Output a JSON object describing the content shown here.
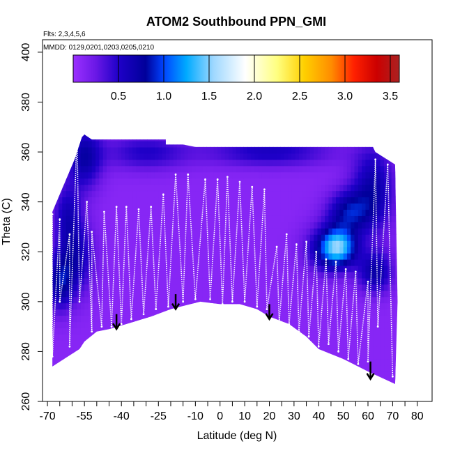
{
  "chart_data": {
    "type": "heatmap",
    "title": "ATOM2 Southbound PPN_GMI",
    "flights_label": "Flts: 2,3,4,5,6",
    "dates_label": "MMDD: 0129,0201,0203,0205,0210",
    "xlabel": "Latitude (deg N)",
    "ylabel": "Theta (C)",
    "xlim": [
      -72,
      86
    ],
    "ylim": [
      260,
      405
    ],
    "x_ticks": [
      -70,
      -65,
      -60,
      -55,
      -50,
      -45,
      -40,
      -35,
      -30,
      -25,
      -20,
      -15,
      -10,
      -5,
      0,
      5,
      10,
      15,
      20,
      25,
      30,
      35,
      40,
      45,
      50,
      55,
      60,
      65,
      70,
      75,
      80
    ],
    "x_tick_labels": [
      "-70",
      "",
      "",
      "-55",
      "",
      "",
      "-40",
      "",
      "",
      "-25",
      "",
      "",
      "-10",
      "",
      "0",
      "",
      "10",
      "",
      "20",
      "",
      "30",
      "",
      "40",
      "",
      "50",
      "",
      "60",
      "",
      "70",
      "",
      "80"
    ],
    "y_ticks": [
      260,
      280,
      300,
      320,
      340,
      360,
      380,
      400
    ],
    "y_tick_labels": [
      "260",
      "280",
      "300",
      "320",
      "340",
      "360",
      "380",
      "400"
    ],
    "colorbar": {
      "min": 0,
      "max": 3.6,
      "ticks": [
        0.5,
        1.0,
        1.5,
        2.0,
        2.5,
        3.0,
        3.5
      ],
      "tick_labels": [
        "0.5",
        "1.0",
        "1.5",
        "2.0",
        "2.5",
        "3.0",
        "3.5"
      ],
      "divisions": [
        0.5,
        1.0,
        1.5,
        2.0,
        2.5,
        3.0,
        3.5
      ],
      "stops": [
        {
          "v": 0.0,
          "c": "#9b30ff"
        },
        {
          "v": 0.25,
          "c": "#6a18e6"
        },
        {
          "v": 0.5,
          "c": "#1f00c8"
        },
        {
          "v": 0.8,
          "c": "#00009a"
        },
        {
          "v": 1.0,
          "c": "#0044ff"
        },
        {
          "v": 1.25,
          "c": "#00aaff"
        },
        {
          "v": 1.55,
          "c": "#9fd8ff"
        },
        {
          "v": 1.9,
          "c": "#ffffff"
        },
        {
          "v": 2.25,
          "c": "#ffff80"
        },
        {
          "v": 2.55,
          "c": "#ffd000"
        },
        {
          "v": 2.85,
          "c": "#ff8c00"
        },
        {
          "v": 3.1,
          "c": "#ff2000"
        },
        {
          "v": 3.35,
          "c": "#cc0000"
        },
        {
          "v": 3.6,
          "c": "#aa2222"
        }
      ]
    },
    "floor_profile": [
      [
        -68,
        274
      ],
      [
        -57,
        281
      ],
      [
        -55,
        284
      ],
      [
        -50,
        288
      ],
      [
        -45,
        289
      ],
      [
        -38,
        291
      ],
      [
        -28,
        294
      ],
      [
        -20,
        297
      ],
      [
        -8,
        300
      ],
      [
        0,
        299
      ],
      [
        8,
        299
      ],
      [
        15,
        297
      ],
      [
        20,
        294
      ],
      [
        28,
        291
      ],
      [
        35,
        286
      ],
      [
        40,
        281
      ],
      [
        50,
        277
      ],
      [
        60,
        272
      ],
      [
        71,
        267
      ]
    ],
    "ceiling_profile": [
      [
        -68,
        336
      ],
      [
        -65,
        343
      ],
      [
        -62,
        350
      ],
      [
        -59,
        357
      ],
      [
        -56,
        366
      ],
      [
        -55,
        367
      ],
      [
        -52,
        365
      ],
      [
        -45,
        365
      ],
      [
        -28,
        365
      ],
      [
        -22,
        365
      ],
      [
        -22,
        363
      ],
      [
        -15,
        363
      ],
      [
        -10,
        362
      ],
      [
        10,
        362
      ],
      [
        35,
        362
      ],
      [
        50,
        362
      ],
      [
        62,
        362
      ],
      [
        63,
        360
      ],
      [
        71,
        355
      ],
      [
        72,
        300
      ],
      [
        71,
        267
      ]
    ],
    "field_background": 0.1,
    "field_blobs": [
      {
        "lat": -55,
        "theta": 358,
        "value": 0.7,
        "slat": 5,
        "stheta": 9
      },
      {
        "lat": -62,
        "theta": 335,
        "value": 0.55,
        "slat": 4,
        "stheta": 9
      },
      {
        "lat": -65,
        "theta": 308,
        "value": 0.75,
        "slat": 4,
        "stheta": 8
      },
      {
        "lat": -58,
        "theta": 318,
        "value": 0.6,
        "slat": 5,
        "stheta": 10
      },
      {
        "lat": -30,
        "theta": 360,
        "value": 0.5,
        "slat": 12,
        "stheta": 5
      },
      {
        "lat": 20,
        "theta": 360,
        "value": 0.55,
        "slat": 18,
        "stheta": 4
      },
      {
        "lat": 62,
        "theta": 345,
        "value": 0.7,
        "slat": 6,
        "stheta": 12
      },
      {
        "lat": 52,
        "theta": 336,
        "value": 0.75,
        "slat": 6,
        "stheta": 6
      },
      {
        "lat": 48,
        "theta": 322,
        "value": 1.1,
        "slat": 5,
        "stheta": 5
      },
      {
        "lat": 44,
        "theta": 321,
        "value": 0.6,
        "slat": 7,
        "stheta": 7
      },
      {
        "lat": 63,
        "theta": 312,
        "value": 0.7,
        "slat": 5,
        "stheta": 6
      }
    ],
    "trajectory_tops": [
      [
        -68,
        335
      ],
      [
        -65,
        333
      ],
      [
        -61,
        327
      ],
      [
        -58,
        368
      ],
      [
        -54,
        340
      ],
      [
        -52,
        328
      ],
      [
        -47,
        336
      ],
      [
        -42,
        338
      ],
      [
        -38,
        338
      ],
      [
        -33,
        337
      ],
      [
        -28,
        338
      ],
      [
        -23,
        343
      ],
      [
        -18,
        351
      ],
      [
        -13,
        351
      ],
      [
        -6,
        349
      ],
      [
        -1,
        349
      ],
      [
        3,
        350
      ],
      [
        8,
        348
      ],
      [
        13,
        346
      ],
      [
        18,
        345
      ],
      [
        23,
        322
      ],
      [
        27,
        327
      ],
      [
        31,
        323
      ],
      [
        35,
        324
      ],
      [
        39,
        320
      ],
      [
        43,
        317
      ],
      [
        47,
        316
      ],
      [
        51,
        313
      ],
      [
        55,
        312
      ],
      [
        60,
        308
      ],
      [
        63,
        357
      ],
      [
        68,
        355
      ]
    ],
    "trajectory_bottoms": [
      [
        -68,
        278
      ],
      [
        -65,
        300
      ],
      [
        -61,
        282
      ],
      [
        -57,
        300
      ],
      [
        -52,
        288
      ],
      [
        -48,
        290
      ],
      [
        -44,
        290
      ],
      [
        -40,
        291
      ],
      [
        -36,
        293
      ],
      [
        -31,
        295
      ],
      [
        -26,
        297
      ],
      [
        -21,
        298
      ],
      [
        -15,
        300
      ],
      [
        -10,
        301
      ],
      [
        -4,
        301
      ],
      [
        1,
        299
      ],
      [
        5,
        300
      ],
      [
        10,
        300
      ],
      [
        15,
        298
      ],
      [
        19,
        297
      ],
      [
        24,
        292
      ],
      [
        28,
        291
      ],
      [
        32,
        288
      ],
      [
        36,
        286
      ],
      [
        40,
        282
      ],
      [
        44,
        283
      ],
      [
        48,
        280
      ],
      [
        52,
        277
      ],
      [
        56,
        275
      ],
      [
        60,
        276
      ],
      [
        64,
        290
      ],
      [
        70,
        270
      ]
    ],
    "arrows": [
      {
        "lat": -42,
        "theta_top": 295,
        "theta_tip": 289
      },
      {
        "lat": -18,
        "theta_top": 303,
        "theta_tip": 297
      },
      {
        "lat": 20,
        "theta_top": 299,
        "theta_tip": 293
      },
      {
        "lat": 61,
        "theta_top": 276,
        "theta_tip": 269
      }
    ]
  }
}
